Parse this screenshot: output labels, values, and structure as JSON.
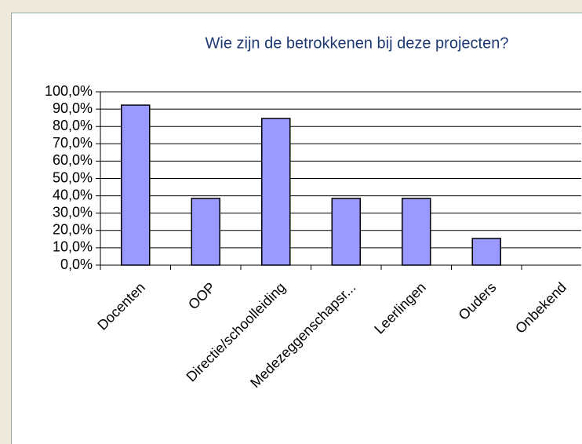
{
  "chart_data": {
    "type": "bar",
    "title": "Wie zijn de betrokkenen bij deze projecten?",
    "categories": [
      "Docenten",
      "OOP",
      "Directie/schoolleiding",
      "Medezeggenschapsr...",
      "Leerlingen",
      "Ouders",
      "Onbekend"
    ],
    "values": [
      92.3,
      38.5,
      84.6,
      38.5,
      38.5,
      15.4,
      0
    ],
    "color": "#9999ff",
    "ylim": [
      0,
      100
    ],
    "yticks": [
      {
        "value": 0,
        "label": "0,0%"
      },
      {
        "value": 10,
        "label": "10,0%"
      },
      {
        "value": 20,
        "label": "20,0%"
      },
      {
        "value": 30,
        "label": "30,0%"
      },
      {
        "value": 40,
        "label": "40,0%"
      },
      {
        "value": 50,
        "label": "50,0%"
      },
      {
        "value": 60,
        "label": "60,0%"
      },
      {
        "value": 70,
        "label": "70,0%"
      },
      {
        "value": 80,
        "label": "80,0%"
      },
      {
        "value": 90,
        "label": "90,0%"
      },
      {
        "value": 100,
        "label": "100,0%"
      }
    ],
    "grid": true
  }
}
